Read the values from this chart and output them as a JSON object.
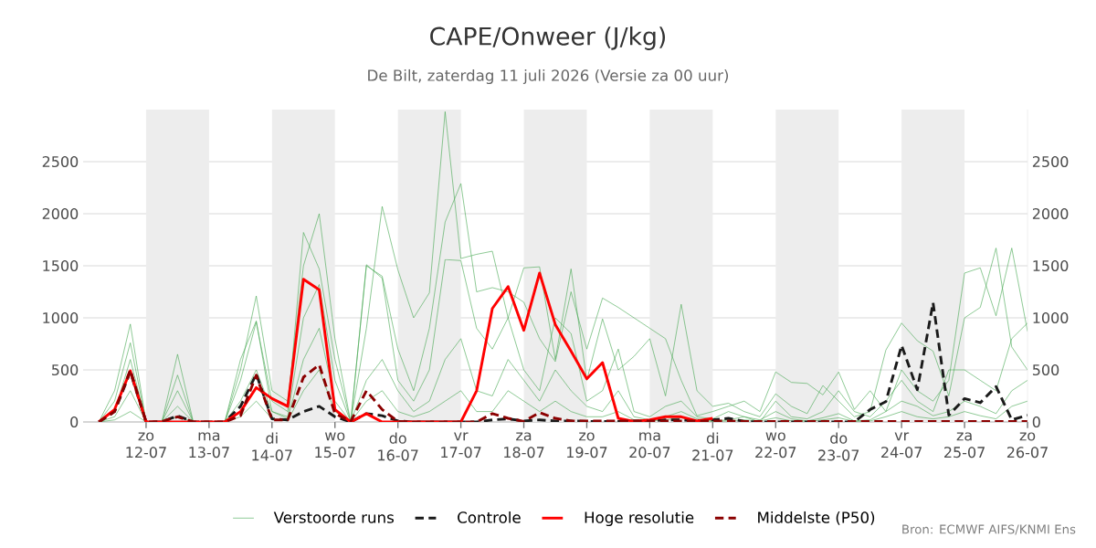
{
  "chart_data": {
    "type": "line",
    "title": "CAPE/Onweer (J/kg)",
    "subtitle": "De Bilt, zaterdag 11 juli 2026 (Versie za 00 uur)",
    "annotations": [
      "Bron: ECMWF AIFS/KNMI Ens"
    ],
    "x": [
      "2026-07-11T06:00",
      "2026-07-11T12:00",
      "2026-07-11T18:00",
      "2026-07-12T00:00",
      "2026-07-12T06:00",
      "2026-07-12T12:00",
      "2026-07-12T18:00",
      "2026-07-13T00:00",
      "2026-07-13T06:00",
      "2026-07-13T12:00",
      "2026-07-13T18:00",
      "2026-07-14T00:00",
      "2026-07-14T06:00",
      "2026-07-14T12:00",
      "2026-07-14T18:00",
      "2026-07-15T00:00",
      "2026-07-15T06:00",
      "2026-07-15T12:00",
      "2026-07-15T18:00",
      "2026-07-16T00:00",
      "2026-07-16T06:00",
      "2026-07-16T12:00",
      "2026-07-16T18:00",
      "2026-07-17T00:00",
      "2026-07-17T06:00",
      "2026-07-17T12:00",
      "2026-07-17T18:00",
      "2026-07-18T00:00",
      "2026-07-18T06:00",
      "2026-07-18T12:00",
      "2026-07-18T18:00",
      "2026-07-19T00:00",
      "2026-07-19T06:00",
      "2026-07-19T12:00",
      "2026-07-19T18:00",
      "2026-07-20T00:00",
      "2026-07-20T06:00",
      "2026-07-20T12:00",
      "2026-07-20T18:00",
      "2026-07-21T00:00",
      "2026-07-21T06:00",
      "2026-07-21T12:00",
      "2026-07-21T18:00",
      "2026-07-22T00:00",
      "2026-07-22T06:00",
      "2026-07-22T12:00",
      "2026-07-22T18:00",
      "2026-07-23T00:00",
      "2026-07-23T06:00",
      "2026-07-23T12:00",
      "2026-07-23T18:00",
      "2026-07-24T00:00",
      "2026-07-24T06:00",
      "2026-07-24T12:00",
      "2026-07-24T18:00",
      "2026-07-25T00:00",
      "2026-07-25T06:00",
      "2026-07-25T12:00",
      "2026-07-25T18:00",
      "2026-07-26T00:00"
    ],
    "xlim": [
      "2026-07-11T00:00",
      "2026-07-26T00:00"
    ],
    "xticks": [
      {
        "value": "2026-07-12T00:00",
        "label": "zo\n12-07"
      },
      {
        "value": "2026-07-13T00:00",
        "label": "ma\n13-07"
      },
      {
        "value": "2026-07-14T00:00",
        "label": "di\n14-07"
      },
      {
        "value": "2026-07-15T00:00",
        "label": "wo\n15-07"
      },
      {
        "value": "2026-07-16T00:00",
        "label": "do\n16-07"
      },
      {
        "value": "2026-07-17T00:00",
        "label": "vr\n17-07"
      },
      {
        "value": "2026-07-18T00:00",
        "label": "za\n18-07"
      },
      {
        "value": "2026-07-19T00:00",
        "label": "zo\n19-07"
      },
      {
        "value": "2026-07-20T00:00",
        "label": "ma\n20-07"
      },
      {
        "value": "2026-07-21T00:00",
        "label": "di\n21-07"
      },
      {
        "value": "2026-07-22T00:00",
        "label": "wo\n22-07"
      },
      {
        "value": "2026-07-23T00:00",
        "label": "do\n23-07"
      },
      {
        "value": "2026-07-24T00:00",
        "label": "vr\n24-07"
      },
      {
        "value": "2026-07-25T00:00",
        "label": "za\n25-07"
      },
      {
        "value": "2026-07-26T00:00",
        "label": "zo\n26-07"
      }
    ],
    "ylim": [
      0,
      3000
    ],
    "yticks": [
      0,
      500,
      1000,
      1500,
      2000,
      2500
    ],
    "y2lim": [
      0,
      3000
    ],
    "y2ticks": [
      0,
      500,
      1000,
      1500,
      2000,
      2500
    ],
    "grid": "y",
    "legend": "bottom",
    "bands": [
      {
        "axis": "x",
        "from": "2026-07-12T00:00",
        "to": "2026-07-13T00:00",
        "color": "#ededed"
      },
      {
        "axis": "x",
        "from": "2026-07-14T00:00",
        "to": "2026-07-15T00:00",
        "color": "#ededed"
      },
      {
        "axis": "x",
        "from": "2026-07-16T00:00",
        "to": "2026-07-17T00:00",
        "color": "#ededed"
      },
      {
        "axis": "x",
        "from": "2026-07-18T00:00",
        "to": "2026-07-19T00:00",
        "color": "#ededed"
      },
      {
        "axis": "x",
        "from": "2026-07-20T00:00",
        "to": "2026-07-21T00:00",
        "color": "#ededed"
      },
      {
        "axis": "x",
        "from": "2026-07-22T00:00",
        "to": "2026-07-23T00:00",
        "color": "#ededed"
      },
      {
        "axis": "x",
        "from": "2026-07-24T00:00",
        "to": "2026-07-25T00:00",
        "color": "#ededed"
      }
    ],
    "series": [
      {
        "name": "Verstoorde runs",
        "color": "#43a64f",
        "line_style": "solid",
        "values": [
          0,
          300,
          940,
          0,
          0,
          650,
          0,
          0,
          0,
          500,
          1210,
          300,
          200,
          1500,
          2000,
          800,
          0,
          1500,
          1400,
          700,
          300,
          900,
          1920,
          2290,
          1250,
          1290,
          1250,
          1150,
          800,
          580,
          1250,
          700,
          1190,
          1100,
          1000,
          900,
          800,
          400,
          60,
          100,
          150,
          200,
          100,
          480,
          380,
          370,
          260,
          480,
          120,
          300,
          100,
          500,
          300,
          200,
          400,
          1430,
          1480,
          1020,
          1670,
          870
        ]
      },
      {
        "color": "#43a64f",
        "line_style": "solid",
        "values": [
          0,
          200,
          760,
          0,
          0,
          450,
          0,
          0,
          0,
          400,
          960,
          200,
          100,
          1820,
          1470,
          600,
          0,
          900,
          2070,
          1460,
          1000,
          1240,
          2980,
          1570,
          1610,
          1640,
          1000,
          1480,
          1490,
          600,
          1470,
          400,
          990,
          500,
          630,
          800,
          250,
          1130,
          300,
          150,
          180,
          100,
          50,
          270,
          150,
          80,
          350,
          200,
          50,
          100,
          690,
          950,
          780,
          680,
          250,
          1000,
          1100,
          1670,
          720,
          500
        ]
      },
      {
        "color": "#43a64f",
        "line_style": "solid",
        "values": [
          0,
          100,
          600,
          0,
          0,
          300,
          0,
          0,
          0,
          600,
          970,
          100,
          50,
          1000,
          1320,
          400,
          0,
          1510,
          1380,
          400,
          200,
          500,
          1560,
          1550,
          900,
          700,
          1000,
          500,
          300,
          1000,
          850,
          200,
          300,
          700,
          100,
          50,
          150,
          200,
          50,
          30,
          100,
          50,
          0,
          200,
          50,
          30,
          100,
          300,
          100,
          50,
          200,
          400,
          200,
          100,
          500,
          500,
          400,
          300,
          800,
          950
        ]
      },
      {
        "color": "#43a64f",
        "line_style": "solid",
        "values": [
          0,
          50,
          300,
          0,
          0,
          150,
          0,
          0,
          0,
          200,
          500,
          100,
          30,
          600,
          900,
          200,
          0,
          400,
          600,
          300,
          100,
          200,
          600,
          800,
          300,
          250,
          600,
          400,
          200,
          500,
          300,
          150,
          100,
          300,
          50,
          20,
          50,
          100,
          30,
          10,
          20,
          50,
          20,
          100,
          30,
          10,
          40,
          80,
          10,
          20,
          100,
          200,
          150,
          60,
          100,
          200,
          150,
          80,
          300,
          400
        ]
      },
      {
        "color": "#43a64f",
        "line_style": "solid",
        "values": [
          0,
          20,
          100,
          0,
          0,
          50,
          0,
          0,
          0,
          50,
          200,
          30,
          10,
          300,
          500,
          100,
          0,
          200,
          300,
          100,
          50,
          100,
          200,
          300,
          100,
          100,
          300,
          200,
          100,
          200,
          100,
          50,
          50,
          100,
          20,
          10,
          20,
          40,
          10,
          5,
          10,
          20,
          10,
          40,
          10,
          5,
          20,
          40,
          5,
          10,
          50,
          100,
          50,
          30,
          50,
          100,
          60,
          30,
          150,
          200
        ]
      },
      {
        "name": "Controle",
        "color": "#1a1a1a",
        "line_style": "dashed",
        "values": [
          0,
          100,
          480,
          0,
          0,
          60,
          0,
          0,
          0,
          150,
          460,
          30,
          20,
          100,
          150,
          50,
          0,
          80,
          60,
          10,
          0,
          0,
          0,
          0,
          0,
          20,
          30,
          10,
          20,
          10,
          10,
          5,
          5,
          5,
          10,
          10,
          20,
          20,
          10,
          20,
          35,
          5,
          0,
          0,
          0,
          0,
          0,
          0,
          0,
          120,
          195,
          735,
          310,
          1145,
          65,
          225,
          185,
          340,
          20,
          65
        ]
      },
      {
        "name": "Hoge resolutie",
        "color": "#ff0000",
        "line_style": "solid",
        "values": [
          0,
          120,
          490,
          0,
          0,
          0,
          0,
          0,
          0,
          100,
          330,
          225,
          150,
          1370,
          1270,
          120,
          0,
          80,
          0,
          0,
          0,
          0,
          0,
          0,
          300,
          1090,
          1300,
          880,
          1430,
          935,
          680,
          415,
          570,
          35,
          5,
          20,
          50,
          50,
          10,
          35,
          null,
          null,
          null,
          null,
          null,
          null,
          null,
          null,
          null,
          null,
          null,
          null,
          null,
          null,
          null,
          null,
          null,
          null,
          null,
          null
        ]
      },
      {
        "name": "Middelste (P50)",
        "color": "#8b0000",
        "line_style": "dashed",
        "values": [
          0,
          100,
          500,
          0,
          5,
          50,
          0,
          0,
          0,
          60,
          450,
          20,
          20,
          430,
          550,
          80,
          5,
          300,
          120,
          5,
          0,
          0,
          0,
          0,
          0,
          80,
          35,
          5,
          90,
          35,
          10,
          10,
          10,
          10,
          10,
          10,
          10,
          10,
          10,
          10,
          10,
          5,
          5,
          5,
          5,
          5,
          5,
          5,
          5,
          5,
          5,
          5,
          5,
          5,
          5,
          5,
          5,
          5,
          5,
          5
        ]
      }
    ]
  }
}
